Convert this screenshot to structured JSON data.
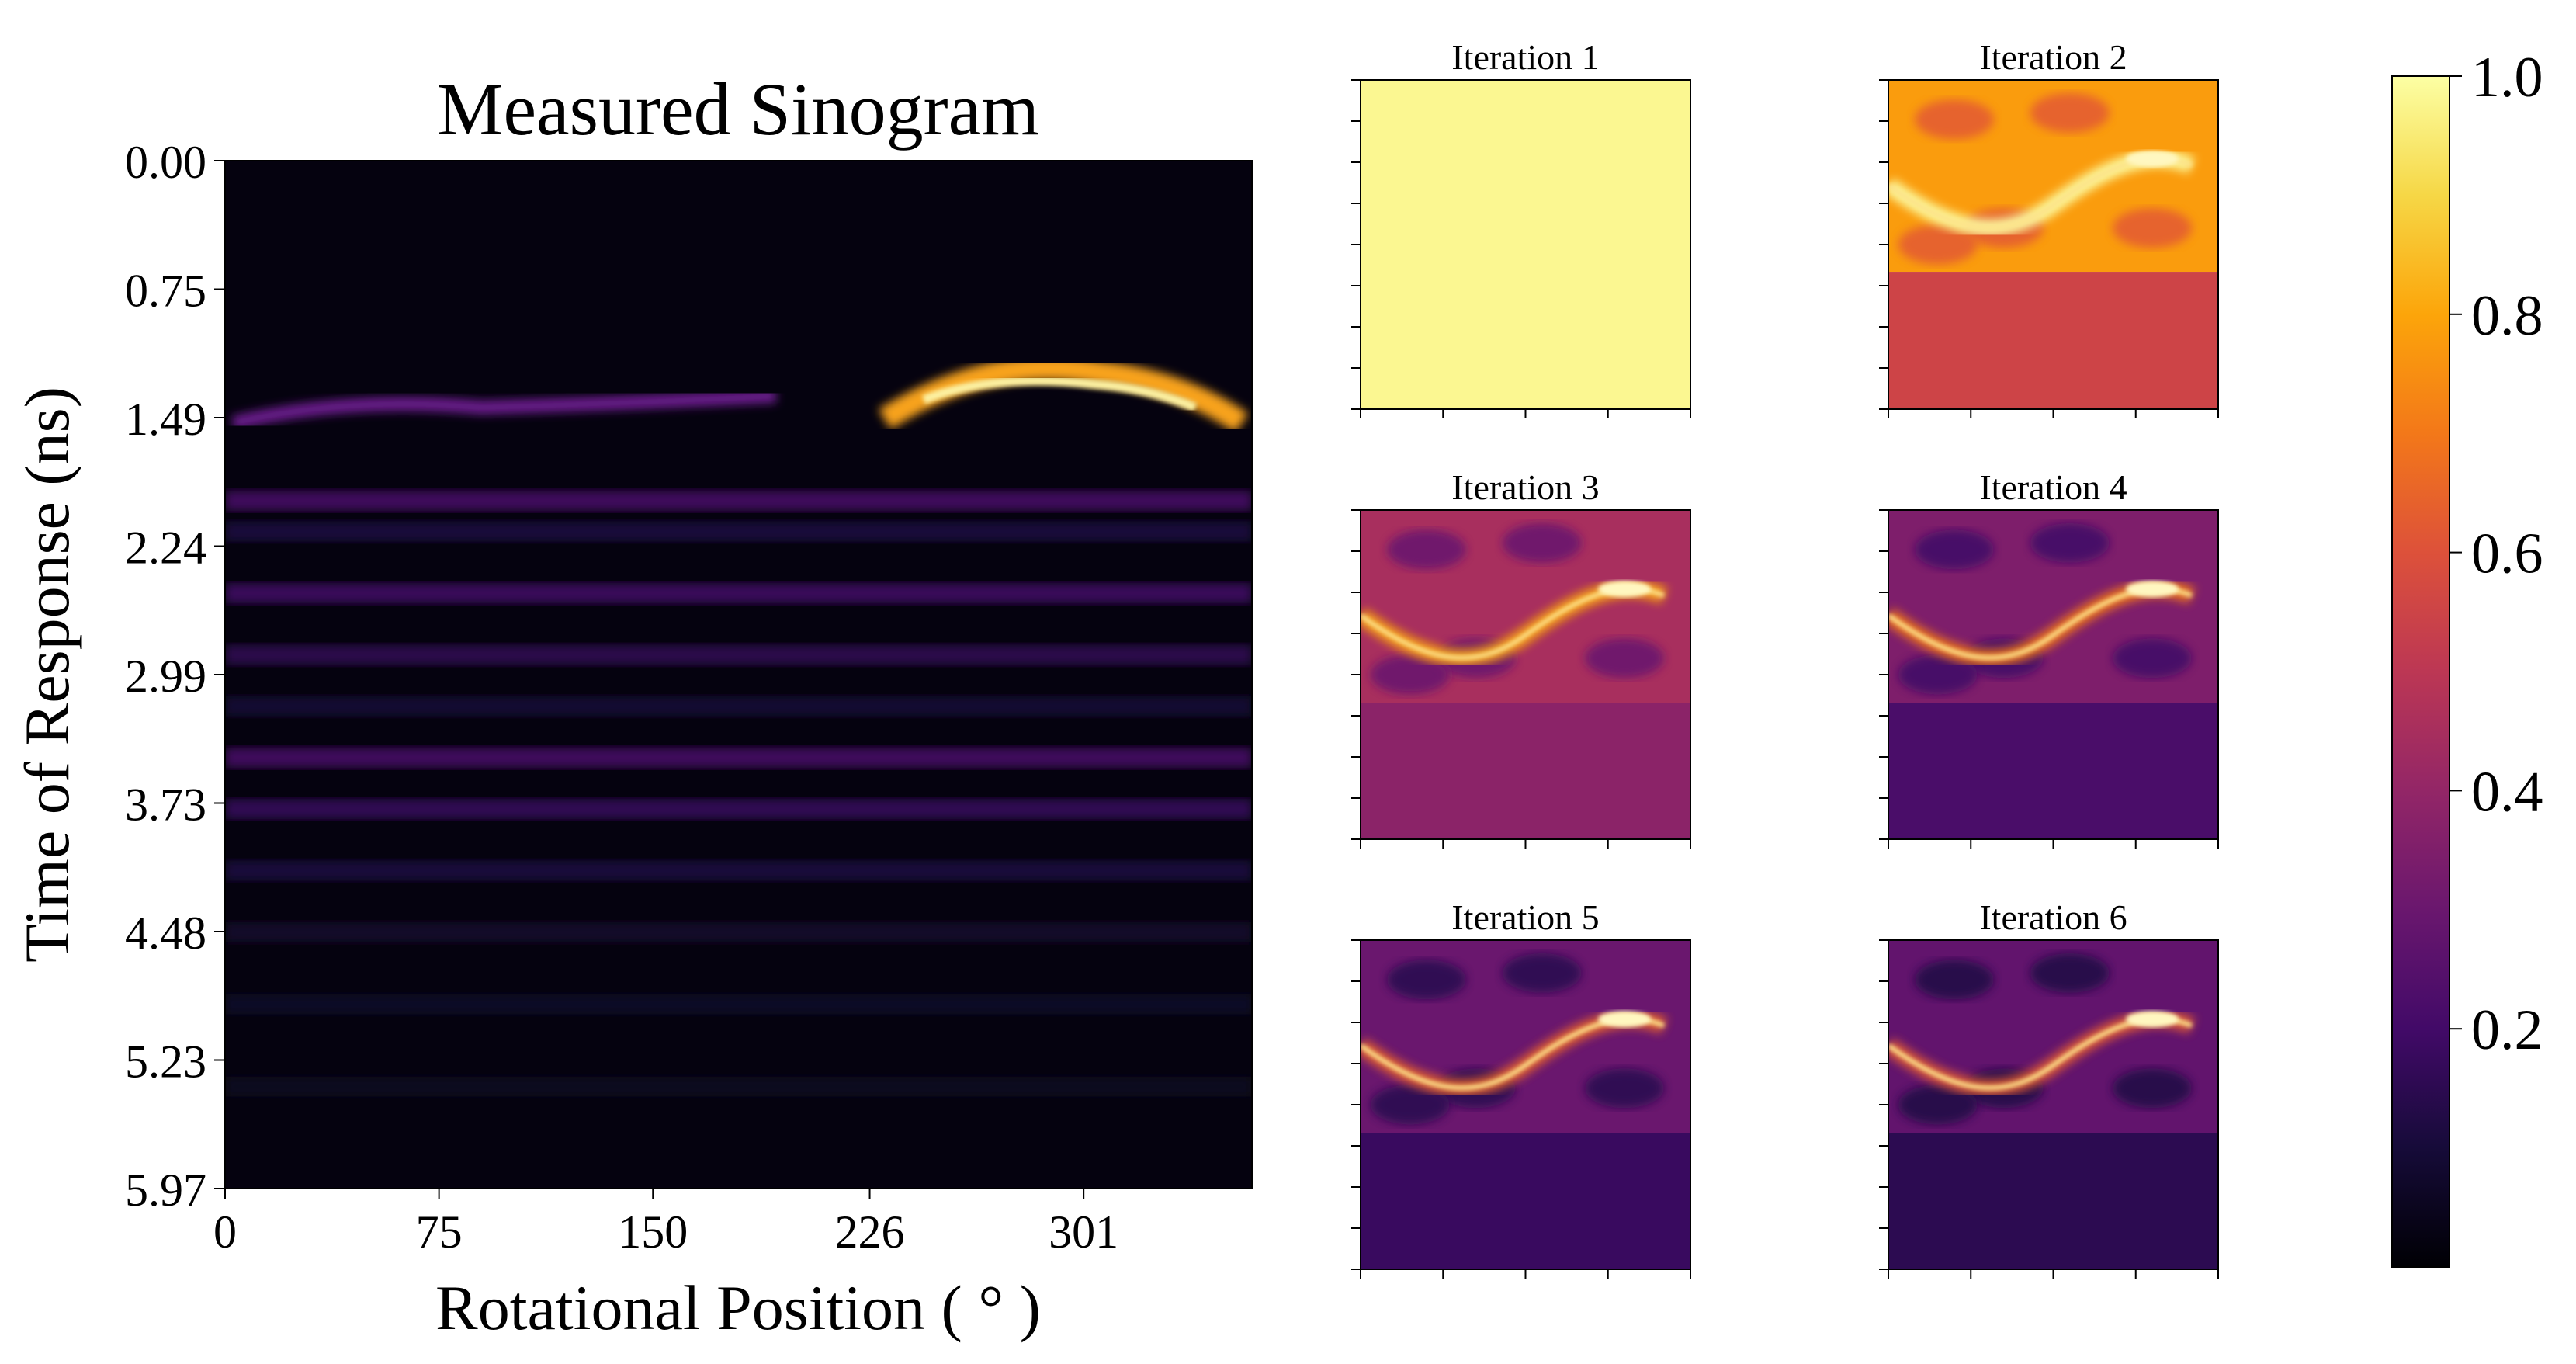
{
  "chart_data": [
    {
      "type": "heatmap",
      "title": "Measured Sinogram",
      "xlabel": "Rotational Position ( ° )",
      "ylabel": "Time of Response (ns)",
      "xticks": [
        "0",
        "75",
        "150",
        "226",
        "301"
      ],
      "yticks": [
        "0.00",
        "0.75",
        "1.49",
        "2.24",
        "2.99",
        "3.73",
        "4.48",
        "5.23",
        "5.97"
      ],
      "xlim": [
        0,
        360
      ],
      "ylim": [
        5.97,
        0.0
      ],
      "colormap": "inferno",
      "features": [
        {
          "desc": "bright arc",
          "x_center": 285,
          "y_peak": 1.35,
          "intensity": 1.0
        },
        {
          "desc": "faint band",
          "y": 1.4,
          "intensity": 0.3
        }
      ]
    },
    {
      "type": "heatmap",
      "layout": "3x2 grid",
      "panels": [
        {
          "title": "Iteration 1",
          "uniform_value": 0.98,
          "has_curve": false
        },
        {
          "title": "Iteration 2",
          "upper_base": 0.78,
          "lower_value": 0.55,
          "has_curve": true
        },
        {
          "title": "Iteration 3",
          "upper_base": 0.45,
          "lower_value": 0.38,
          "has_curve": true
        },
        {
          "title": "Iteration 4",
          "upper_base": 0.35,
          "lower_value": 0.22,
          "has_curve": true
        },
        {
          "title": "Iteration 5",
          "upper_base": 0.3,
          "lower_value": 0.18,
          "has_curve": true
        },
        {
          "title": "Iteration 6",
          "upper_base": 0.28,
          "lower_value": 0.15,
          "has_curve": true
        }
      ]
    },
    {
      "type": "colorbar",
      "colormap": "inferno",
      "range": [
        0.0,
        1.0
      ],
      "ticks": [
        "0.2",
        "0.4",
        "0.6",
        "0.8",
        "1.0"
      ]
    }
  ]
}
